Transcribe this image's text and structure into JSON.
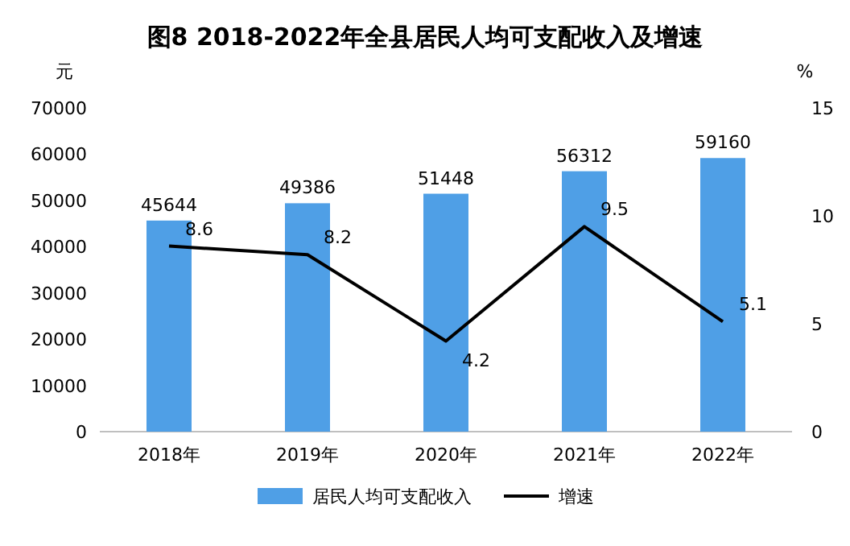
{
  "chart_data": {
    "type": "bar",
    "title": "图8 2018-2022年全县居民人均可支配收入及增速",
    "ylabel": "元",
    "y2label": "%",
    "categories": [
      "2018年",
      "2019年",
      "2020年",
      "2021年",
      "2022年"
    ],
    "series": [
      {
        "name": "居民人均可支配收入",
        "color": "#4f9fe6",
        "values": [
          45644,
          49386,
          51448,
          56312,
          59160
        ]
      },
      {
        "name": "增速",
        "color": "#000000",
        "type": "line",
        "axis": "y2",
        "values": [
          8.6,
          8.2,
          4.2,
          9.5,
          5.1
        ]
      }
    ],
    "ylim": [
      0,
      70000
    ],
    "yticks": [
      0,
      10000,
      20000,
      30000,
      40000,
      50000,
      60000,
      70000
    ],
    "y2lim": [
      0,
      15
    ],
    "y2ticks": [
      0,
      5,
      10,
      15
    ],
    "data_labels": true,
    "legend": "bottom"
  }
}
